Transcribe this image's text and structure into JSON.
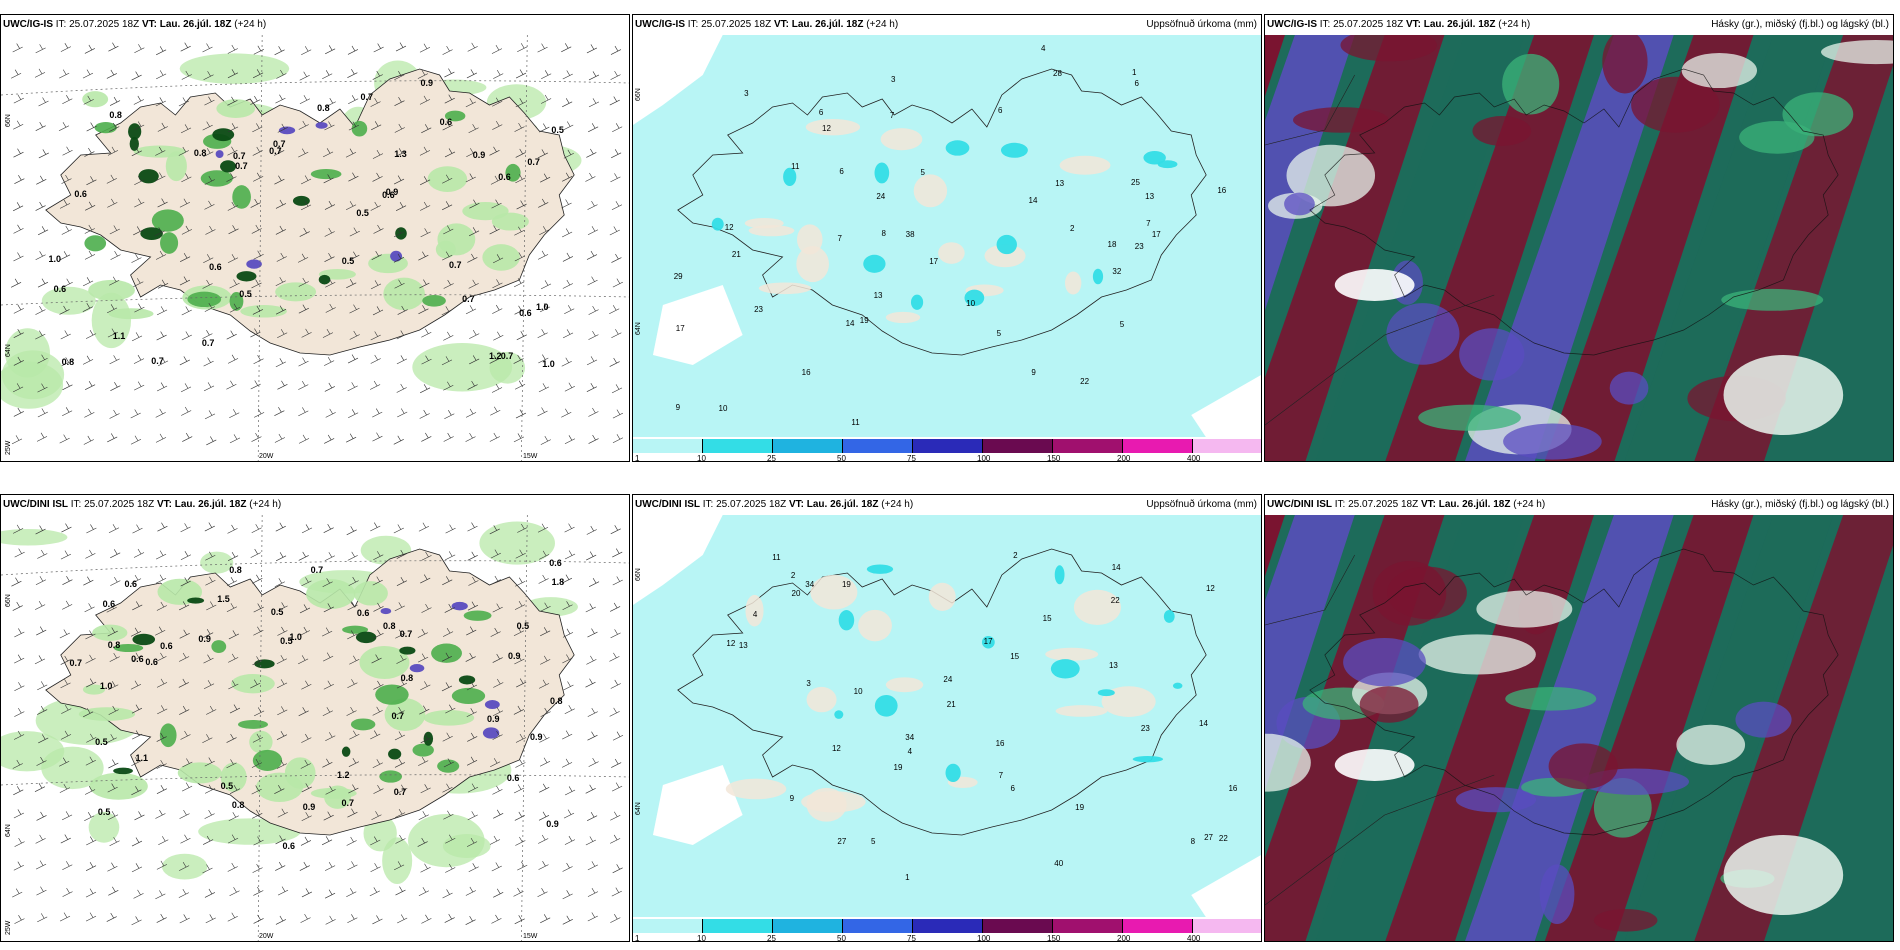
{
  "colors": {
    "land": "#f2e6d8",
    "precip_bg": "#b8f5f5",
    "cyan": "#33dde6",
    "green_light": "#b8e8a8",
    "green_mid": "#4cae4c",
    "green_dark": "#0a4a14",
    "purple": "#5a4cc0",
    "maroon": "#7a1430",
    "teal": "#1d6b5a"
  },
  "panels": [
    {
      "model": "UWC/IG-IS",
      "it_prefix": "IT:",
      "it_value": "25.07.2025 18Z",
      "vt_prefix": "VT:",
      "vt_value": "Lau. 26.júl. 18Z",
      "lead": "(+24 h)",
      "right_title": "",
      "lon_labels": [
        "20W",
        "15W"
      ],
      "lat_labels": [
        "66N",
        "64N",
        "25W"
      ],
      "values": [
        "0.6",
        "0.6",
        "0.7",
        "0.6",
        "1.0",
        "0.8",
        "0.9",
        "0.5",
        "1.2",
        "0.8",
        "0.7",
        "1.1",
        "0.6",
        "1.3",
        "0.8",
        "0.7",
        "1.0",
        "0.9",
        "0.7",
        "0.7",
        "0.5",
        "0.7",
        "0.6",
        "0.7",
        "0.6",
        "1.0",
        "0.5",
        "0.7",
        "0.8",
        "0.7",
        "0.6",
        "0.7",
        "0.7",
        "0.5",
        "0.9"
      ]
    },
    {
      "model": "UWC/IG-IS",
      "it_prefix": "IT:",
      "it_value": "25.07.2025 18Z",
      "vt_prefix": "VT:",
      "vt_value": "Lau. 26.júl. 18Z",
      "lead": "(+24 h)",
      "right_title": "Uppsöfnuð úrkoma (mm)",
      "lat_labels": [
        "66N",
        "64N"
      ],
      "values": [
        "5",
        "13",
        "7",
        "10",
        "6",
        "5",
        "3",
        "12",
        "9",
        "4",
        "6",
        "8",
        "13",
        "17",
        "23",
        "14",
        "23",
        "22",
        "32",
        "16",
        "24",
        "21",
        "28",
        "17",
        "29",
        "38",
        "14",
        "6",
        "7",
        "12",
        "25",
        "11",
        "13",
        "19",
        "16",
        "17",
        "18",
        "11",
        "10",
        "3",
        "2",
        "1",
        "5",
        "7",
        "6",
        "9"
      ],
      "colorbar": [
        "1",
        "10",
        "25",
        "50",
        "75",
        "100",
        "150",
        "200",
        "400"
      ]
    },
    {
      "model": "UWC/IG-IS",
      "it_prefix": "IT:",
      "it_value": "25.07.2025 18Z",
      "vt_prefix": "VT:",
      "vt_value": "Lau. 26.júl. 18Z",
      "lead": "(+24 h)",
      "right_title": "Hásky (gr.), miðský (fj.bl.) og lágský (bl.)"
    },
    {
      "model": "UWC/DINI ISL",
      "it_prefix": "IT:",
      "it_value": "25.07.2025 18Z",
      "vt_prefix": "VT:",
      "vt_value": "Lau. 26.júl. 18Z",
      "lead": "(+24 h)",
      "right_title": "",
      "lon_labels": [
        "20W",
        "15W"
      ],
      "lat_labels": [
        "66N",
        "64N",
        "25W"
      ],
      "values": [
        "0.9",
        "0.5",
        "0.6",
        "1.0",
        "0.9",
        "0.6",
        "1.5",
        "0.6",
        "0.7",
        "0.9",
        "0.5",
        "0.8",
        "0.8",
        "0.7",
        "1.0",
        "0.6",
        "0.5",
        "0.6",
        "0.8",
        "0.9",
        "0.7",
        "0.6",
        "1.8",
        "0.7",
        "0.8",
        "0.6",
        "1.1",
        "0.5",
        "0.7",
        "0.9",
        "0.6",
        "0.8",
        "0.6",
        "0.7",
        "0.5",
        "0.9",
        "0.5",
        "1.2",
        "0.8"
      ]
    },
    {
      "model": "UWC/DINI ISL",
      "it_prefix": "IT:",
      "it_value": "25.07.2025 18Z",
      "vt_prefix": "VT:",
      "vt_value": "Lau. 26.júl. 18Z",
      "lead": "(+24 h)",
      "right_title": "Uppsöfnuð úrkoma (mm)",
      "lat_labels": [
        "66N",
        "64N"
      ],
      "values": [
        "12",
        "13",
        "12",
        "4",
        "2",
        "8",
        "13",
        "27",
        "19",
        "15",
        "19",
        "21",
        "34",
        "22",
        "14",
        "19",
        "23",
        "24",
        "27",
        "11",
        "16",
        "10",
        "20",
        "17",
        "22",
        "34",
        "16",
        "12",
        "15",
        "5",
        "4",
        "2",
        "3",
        "1",
        "6",
        "7",
        "9",
        "14",
        "40"
      ],
      "colorbar": [
        "1",
        "10",
        "25",
        "50",
        "75",
        "100",
        "150",
        "200",
        "400"
      ]
    },
    {
      "model": "UWC/DINI ISL",
      "it_prefix": "IT:",
      "it_value": "25.07.2025 18Z",
      "vt_prefix": "VT:",
      "vt_value": "Lau. 26.júl. 18Z",
      "lead": "(+24 h)",
      "right_title": "Hásky (gr.), miðský (fj.bl.) og lágský (bl.)"
    }
  ],
  "colorbar_colors": [
    "#b8f5f5",
    "#33dde6",
    "#1fb3e0",
    "#3366e6",
    "#2a2ab8",
    "#6a0a50",
    "#a0106e",
    "#e81ab0",
    "#f5b8f0"
  ]
}
